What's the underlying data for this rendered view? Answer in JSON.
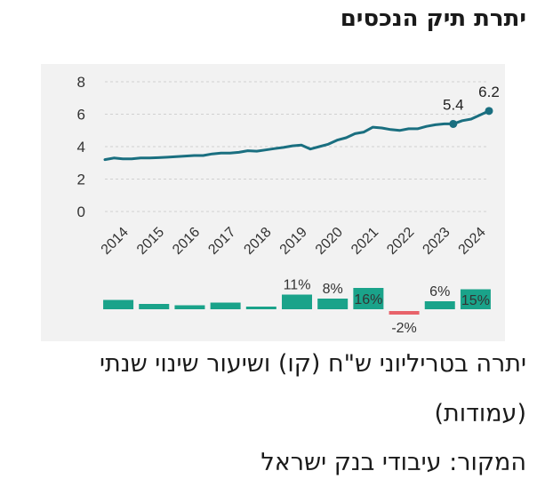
{
  "title": "יתרת תיק הנכסים",
  "caption_line1": "יתרה בטריליוני ש\"ח (קו) ושיעור שינוי שנתי",
  "caption_line2": "(עמודות)",
  "source": "המקור: עיבודי בנק ישראל",
  "colors": {
    "line": "#1a6f80",
    "bar_positive": "#1aa38a",
    "bar_negative": "#e8636a",
    "panel": "#f2f2f2",
    "grid": "#d0d0d0"
  },
  "chart_data": {
    "type": "line",
    "x_tick_labels": [
      "2014",
      "2015",
      "2016",
      "2017",
      "2018",
      "2019",
      "2020",
      "2021",
      "2022",
      "2023",
      "2024"
    ],
    "y_ticks": [
      "0",
      "2",
      "4",
      "6",
      "8"
    ],
    "ylim": [
      0,
      8
    ],
    "xlim": [
      2014,
      2024.75
    ],
    "grid": true,
    "series": [
      {
        "x": [
          2014.0,
          2014.25,
          2014.5,
          2014.75,
          2015.0,
          2015.25,
          2015.5,
          2015.75,
          2016.0,
          2016.25,
          2016.5,
          2016.75,
          2017.0,
          2017.25,
          2017.5,
          2017.75,
          2018.0,
          2018.25,
          2018.5,
          2018.75,
          2019.0,
          2019.25,
          2019.5,
          2019.75,
          2020.0,
          2020.25,
          2020.5,
          2020.75,
          2021.0,
          2021.25,
          2021.5,
          2021.75,
          2022.0,
          2022.25,
          2022.5,
          2022.75,
          2023.0,
          2023.25,
          2023.5,
          2023.75,
          2024.0,
          2024.25,
          2024.5,
          2024.75
        ],
        "values": [
          3.2,
          3.3,
          3.25,
          3.25,
          3.3,
          3.3,
          3.32,
          3.35,
          3.38,
          3.42,
          3.45,
          3.45,
          3.55,
          3.6,
          3.6,
          3.65,
          3.75,
          3.72,
          3.8,
          3.88,
          3.95,
          4.05,
          4.1,
          3.85,
          4.0,
          4.15,
          4.4,
          4.55,
          4.8,
          4.9,
          5.2,
          5.15,
          5.05,
          5.0,
          5.1,
          5.1,
          5.25,
          5.35,
          5.4,
          5.4,
          5.6,
          5.7,
          5.95,
          6.2
        ]
      }
    ],
    "line_annotations": [
      {
        "x": 2023.75,
        "value": 5.4,
        "label": "5.4"
      },
      {
        "x": 2024.75,
        "value": 6.2,
        "label": "6.2"
      }
    ],
    "annual_change_bars": [
      {
        "year": "2014",
        "value": 7,
        "label": ""
      },
      {
        "year": "2015",
        "value": 4,
        "label": ""
      },
      {
        "year": "2016",
        "value": 3,
        "label": ""
      },
      {
        "year": "2017",
        "value": 5,
        "label": ""
      },
      {
        "year": "2018",
        "value": 1,
        "label": ""
      },
      {
        "year": "2019",
        "value": 11,
        "label": "11%"
      },
      {
        "year": "2020",
        "value": 8,
        "label": "8%"
      },
      {
        "year": "2021",
        "value": 16,
        "label": "16%"
      },
      {
        "year": "2022",
        "value": -2,
        "label": "-2%"
      },
      {
        "year": "2023",
        "value": 6,
        "label": "6%"
      },
      {
        "year": "2024",
        "value": 15,
        "label": "15%"
      }
    ]
  }
}
